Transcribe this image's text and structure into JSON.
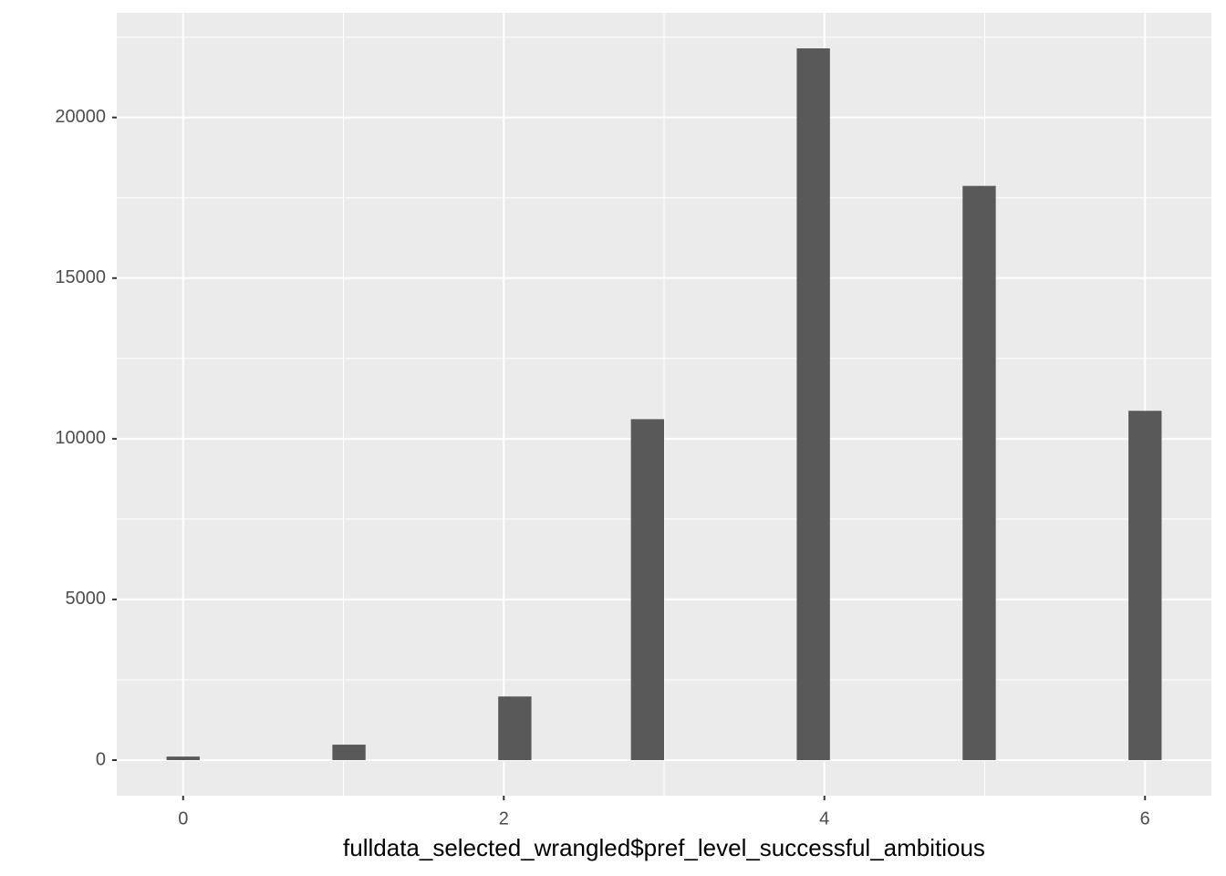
{
  "chart_data": {
    "type": "histogram",
    "x_label": "fulldata_selected_wrangled$pref_level_successful_ambitious",
    "bins": [
      -0.1034,
      0.1034,
      0.3103,
      0.5172,
      0.7241,
      0.931,
      1.1379,
      1.3448,
      1.5517,
      1.7586,
      1.9655,
      2.1724,
      2.3793,
      2.5862,
      2.7931,
      3.0,
      3.2069,
      3.4138,
      3.6207,
      3.8276,
      4.0345,
      4.2414,
      4.4483,
      4.6552,
      4.8621,
      5.069,
      5.2759,
      5.4828,
      5.6897,
      5.8966,
      6.1034
    ],
    "values": [
      110,
      0,
      0,
      0,
      0,
      480,
      0,
      0,
      0,
      0,
      1980,
      0,
      0,
      0,
      10610,
      0,
      0,
      0,
      0,
      22150,
      0,
      0,
      0,
      0,
      17870,
      0,
      0,
      0,
      0,
      10870
    ],
    "color": "#595959",
    "xlim": [
      -0.414,
      6.414
    ],
    "ylim": [
      -1108,
      23258
    ],
    "xticks": [
      0,
      2,
      4,
      6
    ],
    "yticks": [
      0,
      5000,
      10000,
      15000,
      20000
    ],
    "x_minor_grid": [
      1,
      3,
      5
    ],
    "y_minor_grid": [
      2500,
      7500,
      12500,
      17500,
      22500
    ],
    "grid": true,
    "panel_color": "#ebebeb"
  }
}
